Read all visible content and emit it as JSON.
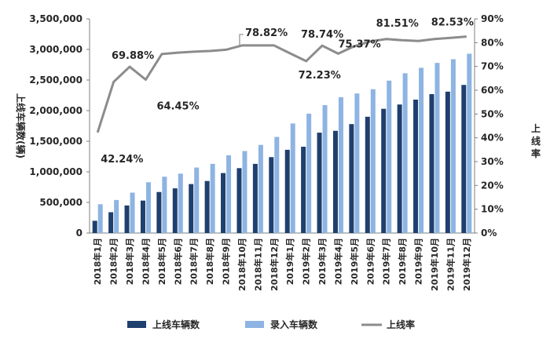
{
  "chart_data": {
    "type": "bar",
    "categories": [
      "2018年1月",
      "2018年2月",
      "2018年3月",
      "2018年4月",
      "2018年5月",
      "2018年6月",
      "2018年7月",
      "2018年8月",
      "2018年9月",
      "2018年10月",
      "2018年11月",
      "2018年12月",
      "2019年1月",
      "2019年2月",
      "2019年3月",
      "2019年4月",
      "2019年5月",
      "2019年6月",
      "2019年7月",
      "2019年8月",
      "2019年9月",
      "2019年10月",
      "2019年11月",
      "2019年12月"
    ],
    "series": [
      {
        "name": "上线车辆数",
        "type": "bar",
        "axis": "left",
        "color": "#1f3f6e",
        "values": [
          200000,
          340000,
          450000,
          530000,
          670000,
          730000,
          800000,
          850000,
          980000,
          1060000,
          1130000,
          1240000,
          1360000,
          1410000,
          1640000,
          1670000,
          1780000,
          1900000,
          2030000,
          2100000,
          2180000,
          2270000,
          2310000,
          2420000
        ]
      },
      {
        "name": "录入车辆数",
        "type": "bar",
        "axis": "left",
        "color": "#8db4e2",
        "values": [
          470000,
          540000,
          660000,
          830000,
          920000,
          970000,
          1070000,
          1130000,
          1270000,
          1340000,
          1440000,
          1570000,
          1790000,
          1950000,
          2090000,
          2220000,
          2280000,
          2350000,
          2490000,
          2610000,
          2700000,
          2780000,
          2840000,
          2930000
        ]
      },
      {
        "name": "上线率",
        "type": "line",
        "axis": "right",
        "color": "#8c8c8c",
        "values": [
          42.24,
          63.5,
          69.88,
          64.45,
          75.2,
          75.8,
          76.2,
          76.5,
          77.0,
          78.82,
          78.82,
          78.82,
          75.5,
          72.23,
          78.74,
          75.37,
          78.5,
          80.5,
          81.51,
          81.0,
          80.7,
          81.5,
          82.0,
          82.53
        ]
      }
    ],
    "y_left": {
      "min": 0,
      "max": 3500000,
      "step": 500000,
      "ticks": [
        "0",
        "500,000",
        "1,000,000",
        "1,500,000",
        "2,000,000",
        "2,500,000",
        "3,000,000",
        "3,500,000"
      ]
    },
    "y_right": {
      "min": 0,
      "max": 90,
      "step": 10,
      "ticks": [
        "0%",
        "10%",
        "20%",
        "30%",
        "40%",
        "50%",
        "60%",
        "70%",
        "80%",
        "90%"
      ]
    },
    "ylabel_left": "上线车辆数(辆)",
    "ylabel_right": "上线率",
    "annotations": [
      {
        "index": 0,
        "text": "42.24%"
      },
      {
        "index": 2,
        "text": "69.88%"
      },
      {
        "index": 3,
        "text": "64.45%"
      },
      {
        "index": 9,
        "text": "78.82%"
      },
      {
        "index": 13,
        "text": "72.23%"
      },
      {
        "index": 14,
        "text": "78.74%"
      },
      {
        "index": 15,
        "text": "75.37%"
      },
      {
        "index": 18,
        "text": "81.51%"
      },
      {
        "index": 23,
        "text": "82.53%"
      }
    ],
    "legend_position": "bottom",
    "grid": false
  }
}
